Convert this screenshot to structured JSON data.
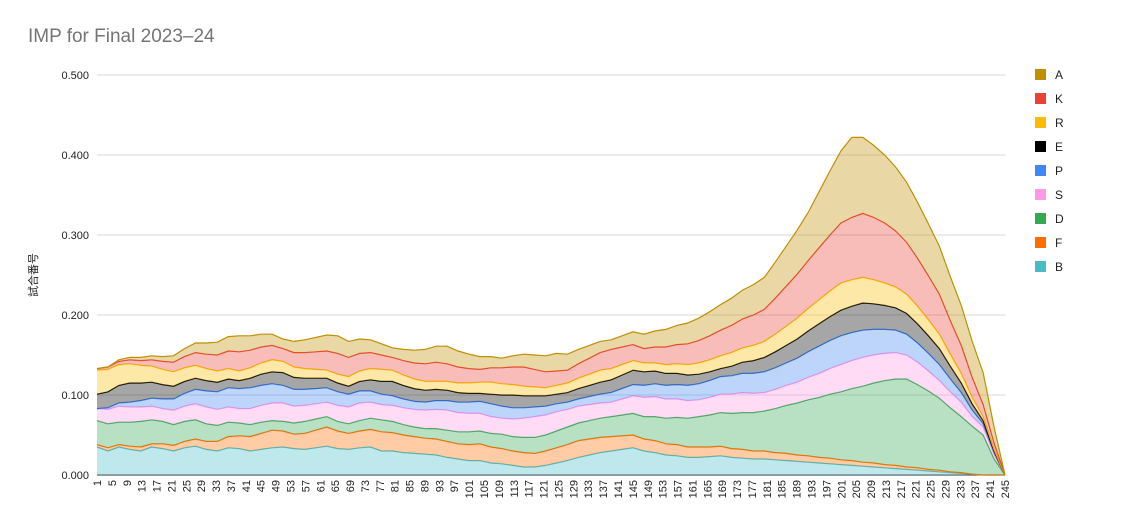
{
  "chart_data": {
    "type": "area",
    "stacked": true,
    "title": "IMP for Final 2023–24",
    "ylabel": "試合番号",
    "xlabel": "",
    "ylim": [
      0,
      0.5
    ],
    "yticks": [
      "0.000",
      "0.100",
      "0.200",
      "0.300",
      "0.400",
      "0.500"
    ],
    "x_start": 1,
    "x_end": 245,
    "x_tick_step": 4,
    "grid": true,
    "legend_position": "right",
    "series": [
      {
        "name": "B",
        "color": "#46bdc6",
        "values": [
          0.035,
          0.03,
          0.035,
          0.032,
          0.03,
          0.035,
          0.033,
          0.03,
          0.034,
          0.036,
          0.032,
          0.03,
          0.034,
          0.033,
          0.03,
          0.032,
          0.034,
          0.035,
          0.033,
          0.032,
          0.034,
          0.036,
          0.033,
          0.032,
          0.034,
          0.035,
          0.03,
          0.03,
          0.028,
          0.027,
          0.026,
          0.025,
          0.022,
          0.02,
          0.018,
          0.018,
          0.015,
          0.014,
          0.012,
          0.01,
          0.01,
          0.012,
          0.015,
          0.018,
          0.022,
          0.025,
          0.028,
          0.03,
          0.032,
          0.034,
          0.03,
          0.028,
          0.025,
          0.024,
          0.022,
          0.022,
          0.023,
          0.024,
          0.022,
          0.021,
          0.02,
          0.02,
          0.019,
          0.018,
          0.017,
          0.016,
          0.015,
          0.014,
          0.013,
          0.012,
          0.011,
          0.01,
          0.009,
          0.008,
          0.007,
          0.006,
          0.005,
          0.004,
          0.003,
          0.002,
          0.001,
          0.0,
          0.0,
          0.0
        ]
      },
      {
        "name": "F",
        "color": "#ff6d01",
        "values": [
          0.003,
          0.004,
          0.003,
          0.004,
          0.005,
          0.004,
          0.006,
          0.007,
          0.008,
          0.009,
          0.01,
          0.012,
          0.014,
          0.016,
          0.018,
          0.02,
          0.022,
          0.02,
          0.018,
          0.02,
          0.022,
          0.024,
          0.022,
          0.02,
          0.021,
          0.022,
          0.024,
          0.023,
          0.022,
          0.021,
          0.02,
          0.02,
          0.02,
          0.019,
          0.02,
          0.021,
          0.02,
          0.019,
          0.018,
          0.018,
          0.017,
          0.018,
          0.019,
          0.02,
          0.021,
          0.02,
          0.019,
          0.018,
          0.017,
          0.016,
          0.015,
          0.015,
          0.014,
          0.014,
          0.013,
          0.013,
          0.012,
          0.012,
          0.011,
          0.011,
          0.01,
          0.01,
          0.009,
          0.009,
          0.008,
          0.008,
          0.007,
          0.007,
          0.006,
          0.006,
          0.005,
          0.005,
          0.004,
          0.004,
          0.003,
          0.003,
          0.002,
          0.002,
          0.001,
          0.001,
          0.0,
          0.0,
          0.0,
          0.0
        ]
      },
      {
        "name": "D",
        "color": "#34a853",
        "values": [
          0.03,
          0.03,
          0.028,
          0.03,
          0.032,
          0.03,
          0.028,
          0.026,
          0.025,
          0.024,
          0.022,
          0.02,
          0.018,
          0.016,
          0.015,
          0.014,
          0.012,
          0.012,
          0.014,
          0.015,
          0.014,
          0.013,
          0.012,
          0.012,
          0.013,
          0.014,
          0.015,
          0.014,
          0.013,
          0.012,
          0.012,
          0.013,
          0.014,
          0.015,
          0.016,
          0.016,
          0.017,
          0.018,
          0.018,
          0.019,
          0.02,
          0.02,
          0.021,
          0.022,
          0.022,
          0.023,
          0.024,
          0.025,
          0.026,
          0.027,
          0.028,
          0.03,
          0.032,
          0.034,
          0.036,
          0.038,
          0.04,
          0.042,
          0.044,
          0.046,
          0.048,
          0.05,
          0.055,
          0.06,
          0.065,
          0.07,
          0.075,
          0.08,
          0.085,
          0.09,
          0.095,
          0.1,
          0.105,
          0.108,
          0.11,
          0.104,
          0.098,
          0.09,
          0.08,
          0.07,
          0.06,
          0.05,
          0.02,
          0.0
        ]
      },
      {
        "name": "S",
        "color": "#ff99e5",
        "values": [
          0.015,
          0.018,
          0.02,
          0.019,
          0.018,
          0.017,
          0.016,
          0.018,
          0.019,
          0.02,
          0.021,
          0.02,
          0.019,
          0.018,
          0.02,
          0.021,
          0.022,
          0.023,
          0.021,
          0.02,
          0.019,
          0.018,
          0.02,
          0.021,
          0.022,
          0.02,
          0.019,
          0.02,
          0.021,
          0.022,
          0.023,
          0.024,
          0.025,
          0.024,
          0.023,
          0.022,
          0.021,
          0.02,
          0.022,
          0.024,
          0.026,
          0.025,
          0.024,
          0.022,
          0.021,
          0.02,
          0.019,
          0.018,
          0.02,
          0.022,
          0.024,
          0.025,
          0.024,
          0.023,
          0.022,
          0.021,
          0.022,
          0.023,
          0.024,
          0.025,
          0.024,
          0.023,
          0.024,
          0.025,
          0.026,
          0.028,
          0.03,
          0.032,
          0.034,
          0.035,
          0.036,
          0.035,
          0.034,
          0.033,
          0.03,
          0.028,
          0.025,
          0.022,
          0.02,
          0.018,
          0.012,
          0.01,
          0.006,
          0.0
        ]
      },
      {
        "name": "P",
        "color": "#4285f4",
        "values": [
          0.0,
          0.002,
          0.004,
          0.006,
          0.008,
          0.01,
          0.012,
          0.014,
          0.016,
          0.018,
          0.02,
          0.022,
          0.024,
          0.025,
          0.026,
          0.025,
          0.024,
          0.022,
          0.021,
          0.02,
          0.019,
          0.018,
          0.017,
          0.016,
          0.015,
          0.014,
          0.013,
          0.012,
          0.011,
          0.01,
          0.01,
          0.011,
          0.012,
          0.013,
          0.014,
          0.015,
          0.016,
          0.015,
          0.014,
          0.013,
          0.012,
          0.011,
          0.01,
          0.009,
          0.009,
          0.01,
          0.011,
          0.012,
          0.013,
          0.014,
          0.015,
          0.016,
          0.017,
          0.018,
          0.019,
          0.02,
          0.021,
          0.022,
          0.023,
          0.024,
          0.025,
          0.026,
          0.027,
          0.028,
          0.03,
          0.032,
          0.034,
          0.035,
          0.036,
          0.035,
          0.034,
          0.032,
          0.03,
          0.028,
          0.026,
          0.024,
          0.022,
          0.02,
          0.016,
          0.012,
          0.008,
          0.004,
          0.002,
          0.0
        ]
      },
      {
        "name": "E",
        "color": "#000000",
        "values": [
          0.018,
          0.02,
          0.022,
          0.024,
          0.022,
          0.02,
          0.018,
          0.016,
          0.015,
          0.014,
          0.013,
          0.012,
          0.011,
          0.01,
          0.012,
          0.014,
          0.015,
          0.016,
          0.015,
          0.014,
          0.013,
          0.012,
          0.011,
          0.01,
          0.012,
          0.014,
          0.016,
          0.018,
          0.017,
          0.016,
          0.015,
          0.014,
          0.013,
          0.012,
          0.011,
          0.01,
          0.012,
          0.014,
          0.016,
          0.015,
          0.014,
          0.013,
          0.012,
          0.012,
          0.013,
          0.014,
          0.015,
          0.016,
          0.017,
          0.018,
          0.017,
          0.016,
          0.015,
          0.014,
          0.013,
          0.012,
          0.011,
          0.01,
          0.012,
          0.014,
          0.016,
          0.018,
          0.02,
          0.022,
          0.024,
          0.026,
          0.028,
          0.03,
          0.032,
          0.033,
          0.034,
          0.032,
          0.03,
          0.028,
          0.026,
          0.024,
          0.022,
          0.02,
          0.016,
          0.012,
          0.008,
          0.004,
          0.002,
          0.0
        ]
      },
      {
        "name": "R",
        "color": "#fbbc04",
        "values": [
          0.03,
          0.028,
          0.026,
          0.024,
          0.022,
          0.02,
          0.019,
          0.018,
          0.017,
          0.016,
          0.015,
          0.014,
          0.013,
          0.012,
          0.013,
          0.014,
          0.015,
          0.014,
          0.013,
          0.012,
          0.011,
          0.01,
          0.011,
          0.012,
          0.013,
          0.014,
          0.015,
          0.014,
          0.013,
          0.012,
          0.011,
          0.01,
          0.011,
          0.012,
          0.013,
          0.014,
          0.015,
          0.014,
          0.013,
          0.012,
          0.011,
          0.01,
          0.011,
          0.012,
          0.013,
          0.014,
          0.015,
          0.014,
          0.013,
          0.012,
          0.011,
          0.01,
          0.011,
          0.012,
          0.013,
          0.014,
          0.015,
          0.016,
          0.017,
          0.018,
          0.019,
          0.02,
          0.022,
          0.024,
          0.026,
          0.028,
          0.03,
          0.032,
          0.034,
          0.033,
          0.032,
          0.03,
          0.028,
          0.026,
          0.024,
          0.022,
          0.02,
          0.018,
          0.015,
          0.012,
          0.008,
          0.005,
          0.002,
          0.0
        ]
      },
      {
        "name": "K",
        "color": "#ea4335",
        "values": [
          0.002,
          0.003,
          0.004,
          0.005,
          0.006,
          0.008,
          0.01,
          0.012,
          0.014,
          0.016,
          0.018,
          0.02,
          0.022,
          0.024,
          0.022,
          0.02,
          0.018,
          0.016,
          0.018,
          0.02,
          0.022,
          0.024,
          0.026,
          0.024,
          0.022,
          0.02,
          0.018,
          0.016,
          0.018,
          0.02,
          0.022,
          0.024,
          0.022,
          0.02,
          0.018,
          0.016,
          0.018,
          0.02,
          0.022,
          0.024,
          0.022,
          0.02,
          0.018,
          0.016,
          0.018,
          0.02,
          0.022,
          0.024,
          0.022,
          0.02,
          0.018,
          0.02,
          0.022,
          0.024,
          0.026,
          0.028,
          0.03,
          0.032,
          0.034,
          0.036,
          0.038,
          0.04,
          0.045,
          0.05,
          0.055,
          0.06,
          0.065,
          0.07,
          0.075,
          0.078,
          0.08,
          0.078,
          0.075,
          0.07,
          0.065,
          0.06,
          0.055,
          0.05,
          0.042,
          0.035,
          0.025,
          0.015,
          0.008,
          0.0
        ]
      },
      {
        "name": "A",
        "color": "#bf9000",
        "values": [
          0.0,
          0.0,
          0.002,
          0.003,
          0.004,
          0.005,
          0.006,
          0.008,
          0.01,
          0.012,
          0.014,
          0.016,
          0.018,
          0.02,
          0.018,
          0.016,
          0.014,
          0.012,
          0.014,
          0.016,
          0.018,
          0.02,
          0.022,
          0.02,
          0.018,
          0.016,
          0.014,
          0.012,
          0.014,
          0.016,
          0.018,
          0.02,
          0.022,
          0.02,
          0.018,
          0.016,
          0.014,
          0.012,
          0.014,
          0.016,
          0.018,
          0.02,
          0.022,
          0.02,
          0.018,
          0.016,
          0.014,
          0.012,
          0.014,
          0.016,
          0.018,
          0.02,
          0.022,
          0.024,
          0.026,
          0.028,
          0.03,
          0.032,
          0.034,
          0.036,
          0.038,
          0.04,
          0.045,
          0.05,
          0.055,
          0.06,
          0.07,
          0.08,
          0.09,
          0.1,
          0.095,
          0.09,
          0.085,
          0.08,
          0.075,
          0.07,
          0.065,
          0.06,
          0.055,
          0.05,
          0.045,
          0.04,
          0.02,
          0.0
        ]
      }
    ]
  }
}
